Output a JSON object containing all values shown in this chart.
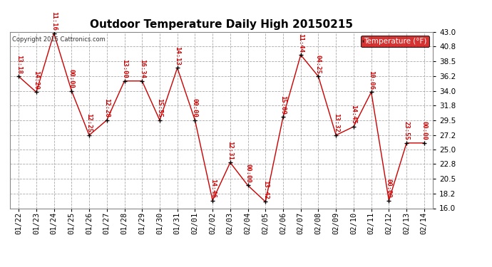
{
  "title": "Outdoor Temperature Daily High 20150215",
  "copyright_text": "Copyright 2015 Cattronics.com",
  "legend_label": "Temperature (°F)",
  "dates": [
    "01/22",
    "01/23",
    "01/24",
    "01/25",
    "01/26",
    "01/27",
    "01/28",
    "01/29",
    "01/30",
    "01/31",
    "02/01",
    "02/02",
    "02/03",
    "02/04",
    "02/05",
    "02/06",
    "02/07",
    "02/08",
    "02/09",
    "02/10",
    "02/11",
    "02/12",
    "02/13",
    "02/14"
  ],
  "values": [
    36.2,
    33.8,
    42.8,
    34.0,
    27.2,
    29.5,
    35.5,
    35.5,
    29.5,
    37.5,
    29.5,
    17.2,
    23.0,
    19.5,
    17.0,
    30.0,
    39.5,
    36.2,
    27.2,
    28.5,
    33.8,
    17.2,
    26.0,
    26.0
  ],
  "time_labels": [
    "13:18",
    "14:20",
    "11:16",
    "00:00",
    "12:25",
    "12:28",
    "13:00",
    "16:34",
    "15:55",
    "14:13",
    "00:00",
    "14:46",
    "12:31",
    "00:00",
    "13:42",
    "15:09",
    "11:44",
    "04:25",
    "13:32",
    "14:45",
    "10:06",
    "00:00",
    "23:55",
    "00:00"
  ],
  "ylim_low": 16.0,
  "ylim_high": 43.0,
  "yticks": [
    16.0,
    18.2,
    20.5,
    22.8,
    25.0,
    27.2,
    29.5,
    31.8,
    34.0,
    36.2,
    38.5,
    40.8,
    43.0
  ],
  "line_color": "#cc0000",
  "marker_color": "#000000",
  "label_color": "#cc0000",
  "bg_color": "#ffffff",
  "grid_color": "#aaaaaa",
  "title_fontsize": 11,
  "label_fontsize": 6.5,
  "tick_fontsize": 7.5,
  "copyright_fontsize": 6,
  "legend_bg": "#cc0000",
  "legend_text_color": "#ffffff",
  "legend_fontsize": 7.5
}
